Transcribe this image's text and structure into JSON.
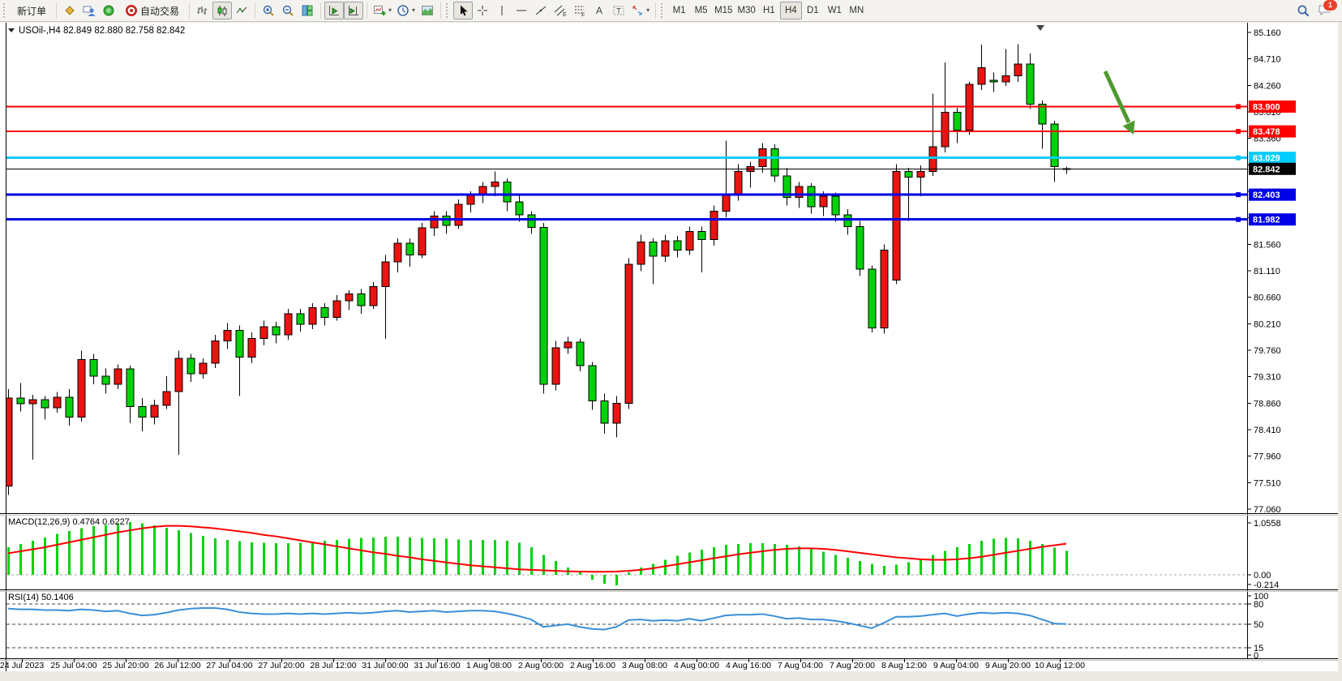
{
  "toolbar": {
    "new_order_label": "新订单",
    "auto_trading_label": "自动交易",
    "left_icons": [
      "market-watch-icon",
      "data-window-icon",
      "navigator-icon"
    ],
    "chart_type_icons": [
      "bar-chart-icon",
      "candlestick-chart-icon",
      "line-chart-icon"
    ],
    "active_chart_type": "candlestick-chart-icon",
    "zoom_icons": [
      "zoom-in-icon",
      "zoom-out-icon",
      "tile-windows-icon"
    ],
    "scroll_icons": [
      "auto-scroll-icon",
      "chart-shift-icon"
    ],
    "insert_icons": [
      "new-chart-icon",
      "profiles-icon",
      "chart-properties-icon"
    ],
    "draw_icons": [
      "cursor-icon",
      "crosshair-icon",
      "vertical-line-icon",
      "horizontal-line-icon",
      "trendline-icon",
      "equidistant-channel-icon",
      "fibonacci-icon",
      "text-icon",
      "text-label-icon",
      "arrows-icon"
    ],
    "active_draw": "cursor-icon",
    "timeframes": [
      "M1",
      "M5",
      "M15",
      "M30",
      "H1",
      "H4",
      "D1",
      "W1",
      "MN"
    ],
    "active_timeframe": "H4",
    "chat_badge": "1"
  },
  "header": {
    "collapse_arrow": "▼",
    "symbol_period": "USOil-,H4",
    "ohlc": "82.849 82.880 82.758 82.842"
  },
  "chart_data": {
    "type": "candlestick",
    "symbol": "USOil-",
    "timeframe": "H4",
    "current_price": "82.842",
    "y_axis": {
      "max": 85.16,
      "min": 77.06,
      "step": 0.45,
      "ticks": [
        "85.160",
        "84.710",
        "84.260",
        "83.810",
        "83.360",
        "82.910",
        "82.460",
        "82.010",
        "81.560",
        "81.110",
        "80.660",
        "80.210",
        "79.760",
        "79.310",
        "78.860",
        "78.410",
        "77.960",
        "77.510",
        "77.060"
      ]
    },
    "x_axis": {
      "labels": [
        "24 Jul 2023",
        "25 Jul 04:00",
        "25 Jul 20:00",
        "26 Jul 12:00",
        "27 Jul 04:00",
        "27 Jul 20:00",
        "28 Jul 12:00",
        "31 Jul 00:00",
        "31 Jul 16:00",
        "1 Aug 08:00",
        "2 Aug 00:00",
        "2 Aug 16:00",
        "3 Aug 08:00",
        "4 Aug 00:00",
        "4 Aug 16:00",
        "7 Aug 04:00",
        "7 Aug 20:00",
        "8 Aug 12:00",
        "9 Aug 04:00",
        "9 Aug 20:00",
        "10 Aug 12:00"
      ]
    },
    "levels": [
      {
        "label": "83.900",
        "value": 83.9,
        "color": "#ff0000",
        "text_color": "#ffffff",
        "width": 2,
        "kind": "resistance"
      },
      {
        "label": "83.478",
        "value": 83.478,
        "color": "#ff0000",
        "text_color": "#ffffff",
        "width": 2,
        "kind": "resistance"
      },
      {
        "label": "83.029",
        "value": 83.029,
        "color": "#00ccff",
        "text_color": "#ffffff",
        "width": 3,
        "kind": "pivot"
      },
      {
        "label": "82.842",
        "value": 82.842,
        "color": "#000000",
        "text_color": "#ffffff",
        "width": 1,
        "kind": "current-price"
      },
      {
        "label": "82.403",
        "value": 82.403,
        "color": "#0000e6",
        "text_color": "#ffffff",
        "width": 3,
        "kind": "support"
      },
      {
        "label": "81.982",
        "value": 81.982,
        "color": "#0000e6",
        "text_color": "#ffffff",
        "width": 3,
        "kind": "support"
      }
    ],
    "colors": {
      "bull": "#ea1410",
      "bear": "#00d20a",
      "wick": "#000000",
      "background": "#ffffff",
      "border": "#000000"
    },
    "annotation": {
      "type": "arrow",
      "direction": "down-right",
      "color": "#4e9a31"
    },
    "candles": [
      [
        77.45,
        79.1,
        77.3,
        78.95
      ],
      [
        78.95,
        79.2,
        78.72,
        78.85
      ],
      [
        78.85,
        79.0,
        77.9,
        78.92
      ],
      [
        78.92,
        78.98,
        78.58,
        78.78
      ],
      [
        78.78,
        79.05,
        78.7,
        78.96
      ],
      [
        78.96,
        79.1,
        78.48,
        78.62
      ],
      [
        78.62,
        79.75,
        78.55,
        79.6
      ],
      [
        79.6,
        79.7,
        79.18,
        79.32
      ],
      [
        79.32,
        79.45,
        79.02,
        79.18
      ],
      [
        79.18,
        79.52,
        79.1,
        79.44
      ],
      [
        79.44,
        79.5,
        78.52,
        78.8
      ],
      [
        78.8,
        78.95,
        78.38,
        78.62
      ],
      [
        78.62,
        78.92,
        78.5,
        78.82
      ],
      [
        78.82,
        79.32,
        78.76,
        79.06
      ],
      [
        79.06,
        79.75,
        77.98,
        79.62
      ],
      [
        79.62,
        79.7,
        79.22,
        79.36
      ],
      [
        79.36,
        79.62,
        79.28,
        79.54
      ],
      [
        79.54,
        80.02,
        79.46,
        79.92
      ],
      [
        79.92,
        80.22,
        79.78,
        80.1
      ],
      [
        80.1,
        80.18,
        78.98,
        79.64
      ],
      [
        79.64,
        80.06,
        79.54,
        79.96
      ],
      [
        79.96,
        80.26,
        79.84,
        80.16
      ],
      [
        80.16,
        80.24,
        79.88,
        80.02
      ],
      [
        80.02,
        80.46,
        79.94,
        80.38
      ],
      [
        80.38,
        80.46,
        80.08,
        80.2
      ],
      [
        80.2,
        80.56,
        80.12,
        80.48
      ],
      [
        80.48,
        80.56,
        80.18,
        80.32
      ],
      [
        80.32,
        80.7,
        80.26,
        80.6
      ],
      [
        80.6,
        80.78,
        80.44,
        80.72
      ],
      [
        80.72,
        80.8,
        80.38,
        80.52
      ],
      [
        80.52,
        80.92,
        80.46,
        80.84
      ],
      [
        80.84,
        81.38,
        79.95,
        81.26
      ],
      [
        81.26,
        81.66,
        81.08,
        81.58
      ],
      [
        81.58,
        81.66,
        81.18,
        81.38
      ],
      [
        81.38,
        81.92,
        81.32,
        81.84
      ],
      [
        81.84,
        82.12,
        81.7,
        82.04
      ],
      [
        82.04,
        82.12,
        81.74,
        81.88
      ],
      [
        81.88,
        82.32,
        81.82,
        82.24
      ],
      [
        82.24,
        82.46,
        82.1,
        82.4
      ],
      [
        82.4,
        82.62,
        82.26,
        82.54
      ],
      [
        82.54,
        82.8,
        82.38,
        82.62
      ],
      [
        82.62,
        82.68,
        82.12,
        82.28
      ],
      [
        82.28,
        82.4,
        81.94,
        82.06
      ],
      [
        82.06,
        82.12,
        81.74,
        81.85
      ],
      [
        81.85,
        81.92,
        79.02,
        79.18
      ],
      [
        79.18,
        79.92,
        79.08,
        79.8
      ],
      [
        79.8,
        79.99,
        79.7,
        79.9
      ],
      [
        79.9,
        79.96,
        79.4,
        79.5
      ],
      [
        79.5,
        79.56,
        78.75,
        78.9
      ],
      [
        78.9,
        79.02,
        78.34,
        78.52
      ],
      [
        78.52,
        78.98,
        78.28,
        78.86
      ],
      [
        78.86,
        81.32,
        78.76,
        81.22
      ],
      [
        81.22,
        81.72,
        81.1,
        81.6
      ],
      [
        81.6,
        81.66,
        80.88,
        81.36
      ],
      [
        81.36,
        81.72,
        81.26,
        81.62
      ],
      [
        81.62,
        81.7,
        81.34,
        81.46
      ],
      [
        81.46,
        81.86,
        81.38,
        81.78
      ],
      [
        81.78,
        81.86,
        81.08,
        81.64
      ],
      [
        81.64,
        82.22,
        81.54,
        82.12
      ],
      [
        82.12,
        83.32,
        82.02,
        82.42
      ],
      [
        82.42,
        82.92,
        82.3,
        82.8
      ],
      [
        82.8,
        82.96,
        82.52,
        82.88
      ],
      [
        82.88,
        83.28,
        82.78,
        83.18
      ],
      [
        83.18,
        83.26,
        82.62,
        82.72
      ],
      [
        82.72,
        82.86,
        82.22,
        82.36
      ],
      [
        82.36,
        82.62,
        82.18,
        82.54
      ],
      [
        82.54,
        82.6,
        82.08,
        82.2
      ],
      [
        82.2,
        82.46,
        82.04,
        82.38
      ],
      [
        82.38,
        82.44,
        81.94,
        82.06
      ],
      [
        82.06,
        82.16,
        81.72,
        81.86
      ],
      [
        81.86,
        81.96,
        81.02,
        81.14
      ],
      [
        81.14,
        81.2,
        80.06,
        80.14
      ],
      [
        80.14,
        81.56,
        80.04,
        81.46
      ],
      [
        80.95,
        82.92,
        80.88,
        82.8
      ],
      [
        82.8,
        82.86,
        81.96,
        82.7
      ],
      [
        82.7,
        82.9,
        82.38,
        82.8
      ],
      [
        82.8,
        84.12,
        82.72,
        83.22
      ],
      [
        83.22,
        84.65,
        83.12,
        83.8
      ],
      [
        83.8,
        83.88,
        83.28,
        83.5
      ],
      [
        83.5,
        84.32,
        83.42,
        84.28
      ],
      [
        84.28,
        84.95,
        84.18,
        84.56
      ],
      [
        84.35,
        84.48,
        84.15,
        84.32
      ],
      [
        84.32,
        84.88,
        84.25,
        84.42
      ],
      [
        84.42,
        84.96,
        84.32,
        84.62
      ],
      [
        84.62,
        84.8,
        83.86,
        83.94
      ],
      [
        83.94,
        84.0,
        83.18,
        83.6
      ],
      [
        83.6,
        83.66,
        82.62,
        82.88
      ],
      [
        82.849,
        82.88,
        82.758,
        82.842
      ]
    ],
    "macd": {
      "label": "MACD(12,26,9)",
      "values_text": "0.4764 0.6227",
      "axis": [
        "1.0558",
        "0.00",
        "-0.214"
      ],
      "histogram_color": "#00d20a",
      "signal_color": "#ff0000",
      "histogram": [
        0.55,
        0.62,
        0.68,
        0.75,
        0.82,
        0.88,
        0.93,
        0.97,
        1.0,
        1.03,
        1.0558,
        1.03,
        0.99,
        0.94,
        0.89,
        0.84,
        0.78,
        0.73,
        0.7,
        0.67,
        0.65,
        0.64,
        0.63,
        0.63,
        0.64,
        0.66,
        0.68,
        0.7,
        0.72,
        0.74,
        0.75,
        0.76,
        0.76,
        0.75,
        0.74,
        0.73,
        0.72,
        0.71,
        0.7,
        0.7,
        0.7,
        0.68,
        0.64,
        0.55,
        0.4,
        0.28,
        0.15,
        0.05,
        -0.1,
        -0.18,
        -0.214,
        0.05,
        0.15,
        0.22,
        0.3,
        0.38,
        0.45,
        0.5,
        0.55,
        0.6,
        0.62,
        0.63,
        0.63,
        0.62,
        0.6,
        0.57,
        0.52,
        0.46,
        0.4,
        0.34,
        0.28,
        0.22,
        0.18,
        0.2,
        0.25,
        0.32,
        0.4,
        0.48,
        0.55,
        0.62,
        0.68,
        0.72,
        0.74,
        0.73,
        0.68,
        0.62,
        0.54,
        0.4764
      ],
      "signal": [
        0.43,
        0.47,
        0.51,
        0.55,
        0.6,
        0.65,
        0.7,
        0.75,
        0.8,
        0.85,
        0.89,
        0.93,
        0.96,
        0.98,
        0.98,
        0.97,
        0.95,
        0.93,
        0.9,
        0.87,
        0.84,
        0.8,
        0.77,
        0.73,
        0.69,
        0.65,
        0.61,
        0.57,
        0.53,
        0.49,
        0.45,
        0.42,
        0.38,
        0.35,
        0.31,
        0.28,
        0.25,
        0.22,
        0.19,
        0.17,
        0.15,
        0.13,
        0.11,
        0.1,
        0.09,
        0.08,
        0.07,
        0.065,
        0.06,
        0.06,
        0.065,
        0.08,
        0.1,
        0.13,
        0.17,
        0.21,
        0.25,
        0.29,
        0.33,
        0.37,
        0.41,
        0.44,
        0.47,
        0.5,
        0.52,
        0.53,
        0.53,
        0.52,
        0.5,
        0.47,
        0.44,
        0.41,
        0.38,
        0.35,
        0.33,
        0.31,
        0.3,
        0.3,
        0.31,
        0.33,
        0.36,
        0.4,
        0.44,
        0.48,
        0.52,
        0.56,
        0.59,
        0.6227
      ]
    },
    "rsi": {
      "label": "RSI(14)",
      "value_text": "50.1406",
      "axis": [
        "100",
        "80",
        "50",
        "15",
        "0"
      ],
      "dashed_levels": [
        80,
        50,
        15
      ],
      "color": "#3a8fd9",
      "values": [
        73,
        72,
        72,
        71,
        71,
        70,
        72,
        71,
        69,
        70,
        66,
        63,
        64,
        67,
        71,
        73,
        74,
        74,
        72,
        68,
        66,
        65,
        65,
        66,
        65,
        66,
        65,
        66,
        67,
        66,
        67,
        69,
        70,
        68,
        69,
        70,
        68,
        69,
        70,
        70,
        69,
        66,
        62,
        57,
        46,
        48,
        50,
        46,
        43,
        42,
        46,
        56,
        57,
        55,
        56,
        55,
        58,
        55,
        59,
        63,
        64,
        64,
        65,
        62,
        58,
        59,
        57,
        57,
        55,
        52,
        48,
        44,
        52,
        61,
        61,
        62,
        64,
        66,
        62,
        65,
        67,
        66,
        67,
        66,
        63,
        57,
        51,
        50.14
      ]
    }
  }
}
